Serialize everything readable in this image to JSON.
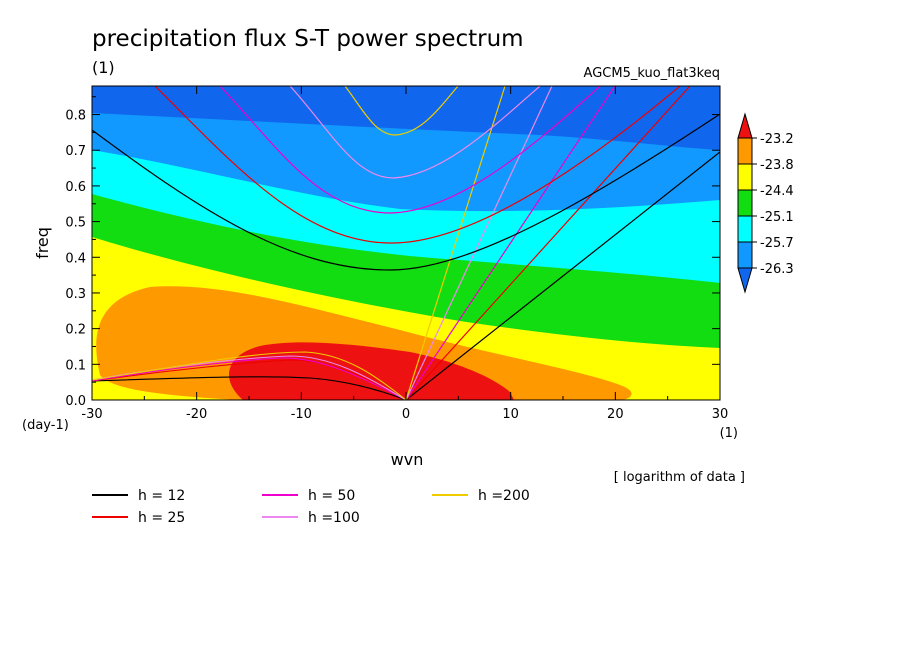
{
  "title": "precipitation flux S-T power spectrum",
  "subtitle_left": "(1)",
  "subtitle_right": "AGCM5_kuo_flat3keq",
  "footnote": "[ logarithm of data ]",
  "chart_data": {
    "type": "contour",
    "title": "precipitation flux S-T power spectrum",
    "xlabel": "wvn",
    "ylabel": "freq",
    "x_units": "(1)",
    "y_units": "(day-1)",
    "xlim": [
      -30,
      30
    ],
    "ylim": [
      0,
      0.88
    ],
    "x_ticks": [
      -30,
      -20,
      -10,
      0,
      10,
      20,
      30
    ],
    "y_ticks": [
      0.0,
      0.1,
      0.2,
      0.3,
      0.4,
      0.5,
      0.6,
      0.7,
      0.8
    ],
    "x_tick_labels": [
      "-30",
      "-20",
      "-10",
      "0",
      "10",
      "20",
      "30"
    ],
    "y_tick_labels": [
      "0.0",
      "0.1",
      "0.2",
      "0.3",
      "0.4",
      "0.5",
      "0.6",
      "0.7",
      "0.8"
    ],
    "colorbar": {
      "labels": [
        "-23.2",
        "-23.8",
        "-24.4",
        "-25.1",
        "-25.7",
        "-26.3"
      ],
      "bands_top_to_bottom": [
        "#ee1111",
        "#ff9900",
        "#ffff00",
        "#11dd11",
        "#00ffff",
        "#1199ff",
        "#1166ee"
      ]
    },
    "filled_bands_top_to_bottom_in_plot": [
      "#1166ee",
      "#1199ff",
      "#00ffff",
      "#11dd11",
      "#ffff00",
      "#ff9900",
      "#ee1111"
    ],
    "dispersion_curves": [
      {
        "label": "h = 12",
        "color": "#000000"
      },
      {
        "label": "h = 25",
        "color": "#ee0000"
      },
      {
        "label": "h = 50",
        "color": "#ee00cc"
      },
      {
        "label": "h =100",
        "color": "#ee88ee"
      },
      {
        "label": "h =200",
        "color": "#eecc00"
      }
    ]
  }
}
